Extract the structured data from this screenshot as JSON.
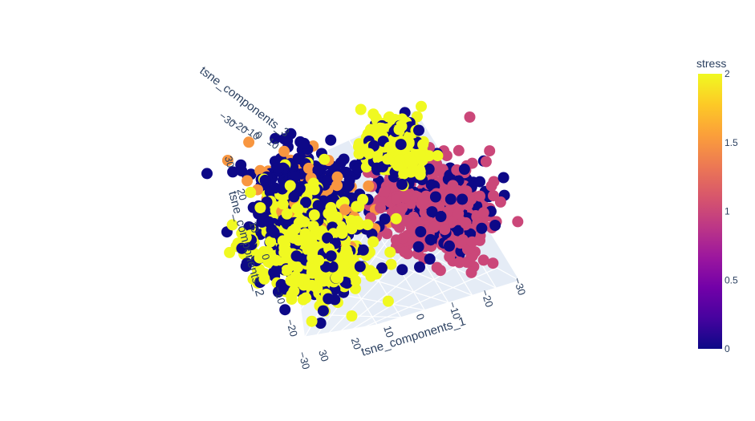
{
  "chart_data": {
    "type": "scatter",
    "subtype": "scatter3d",
    "axes": {
      "x": {
        "label": "tsne_components_1",
        "range": [
          -30,
          30
        ],
        "ticks": [
          30,
          20,
          10,
          0,
          -10,
          -20,
          -30
        ]
      },
      "y": {
        "label": "tsne_components_2",
        "range": [
          -30,
          30
        ],
        "ticks": [
          30,
          20,
          10,
          0,
          -10,
          -20,
          -30
        ]
      },
      "z": {
        "label": "tsne_components_3",
        "range": [
          -30,
          10
        ],
        "ticks": [
          -30,
          -20,
          -10,
          0,
          10
        ]
      }
    },
    "grid": true,
    "colorbar": {
      "title": "stress",
      "range": [
        0,
        2
      ],
      "ticks": [
        "0",
        "0.5",
        "1",
        "1.5",
        "2"
      ],
      "colorscale": [
        "#0d0887",
        "#46039f",
        "#7201a8",
        "#9c179e",
        "#bd3786",
        "#d8576b",
        "#ed7953",
        "#fb9f3a",
        "#fdca26",
        "#f0f921"
      ],
      "placement": "right"
    },
    "clusters": [
      {
        "stress": 0,
        "x_center": 12,
        "y_center": 5,
        "z_center": -5,
        "spread": 9
      },
      {
        "stress": 1,
        "x_center": -14,
        "y_center": 6,
        "z_center": -12,
        "spread": 10
      },
      {
        "stress": 2,
        "x_center": 14,
        "y_center": -4,
        "z_center": 4,
        "spread": 10
      },
      {
        "stress": 2,
        "x_center": -2,
        "y_center": 24,
        "z_center": 6,
        "spread": 5
      }
    ]
  }
}
